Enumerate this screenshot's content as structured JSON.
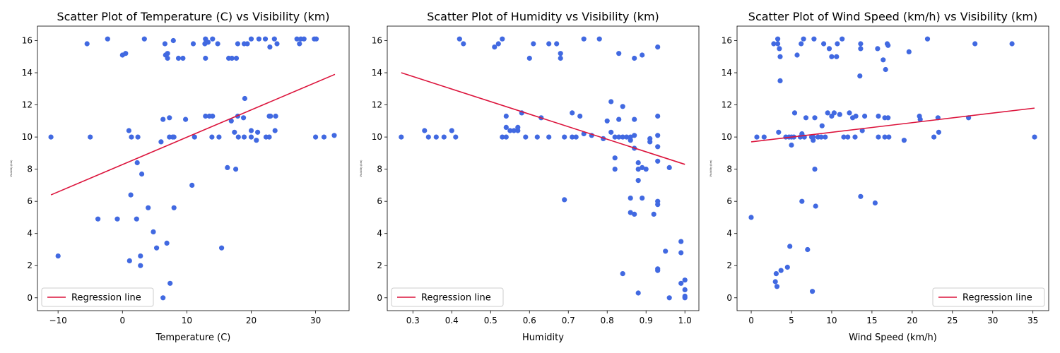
{
  "chart_data": [
    {
      "type": "scatter",
      "title": "Scatter Plot of Temperature (C) vs Visibility (km)",
      "xlabel": "Temperature (C)",
      "ylabel": "Visibility (km)",
      "xlim": [
        -13.2,
        35.2
      ],
      "ylim": [
        -0.8,
        16.9
      ],
      "xticks": [
        -10,
        0,
        10,
        20,
        30
      ],
      "yticks": [
        0,
        2,
        4,
        6,
        8,
        10,
        12,
        14,
        16
      ],
      "grid": false,
      "legend_position": "lower-left",
      "legend": [
        "Regression line"
      ],
      "point_color": "#4169e1",
      "line_color": "#dc143c",
      "regression": {
        "x": [
          -11.1,
          33.0
        ],
        "y": [
          6.4,
          13.9
        ]
      },
      "points": [
        [
          -11.1,
          10.0
        ],
        [
          -10.0,
          2.6
        ],
        [
          -5.5,
          15.8
        ],
        [
          -5.0,
          10.0
        ],
        [
          -3.8,
          4.9
        ],
        [
          -2.3,
          16.1
        ],
        [
          -0.8,
          4.9
        ],
        [
          0.0,
          15.1
        ],
        [
          0.5,
          15.2
        ],
        [
          1.0,
          10.4
        ],
        [
          1.1,
          2.3
        ],
        [
          1.3,
          6.4
        ],
        [
          1.4,
          10.0
        ],
        [
          2.2,
          4.9
        ],
        [
          2.3,
          8.4
        ],
        [
          2.4,
          10.0
        ],
        [
          2.8,
          2.0
        ],
        [
          2.8,
          2.6
        ],
        [
          3.0,
          7.7
        ],
        [
          3.4,
          16.1
        ],
        [
          4.0,
          5.6
        ],
        [
          4.8,
          4.1
        ],
        [
          5.3,
          3.1
        ],
        [
          6.0,
          9.7
        ],
        [
          6.3,
          11.1
        ],
        [
          6.3,
          0.0
        ],
        [
          6.6,
          15.8
        ],
        [
          6.7,
          15.1
        ],
        [
          6.9,
          3.4
        ],
        [
          7.0,
          15.2
        ],
        [
          7.0,
          14.9
        ],
        [
          7.3,
          10.0
        ],
        [
          7.3,
          11.2
        ],
        [
          7.4,
          0.9
        ],
        [
          7.8,
          10.0
        ],
        [
          7.9,
          16.0
        ],
        [
          8.0,
          5.6
        ],
        [
          8.0,
          10.0
        ],
        [
          8.7,
          14.9
        ],
        [
          9.4,
          14.9
        ],
        [
          9.8,
          11.1
        ],
        [
          10.8,
          7.0
        ],
        [
          11.0,
          15.8
        ],
        [
          11.2,
          10.0
        ],
        [
          12.8,
          15.8
        ],
        [
          12.9,
          16.1
        ],
        [
          12.9,
          11.3
        ],
        [
          12.9,
          14.9
        ],
        [
          13.0,
          15.9
        ],
        [
          13.3,
          15.9
        ],
        [
          13.5,
          11.3
        ],
        [
          13.9,
          10.0
        ],
        [
          14.0,
          16.1
        ],
        [
          14.0,
          11.3
        ],
        [
          14.8,
          15.8
        ],
        [
          15.0,
          10.0
        ],
        [
          15.4,
          3.1
        ],
        [
          16.3,
          8.1
        ],
        [
          16.5,
          14.9
        ],
        [
          16.9,
          11.0
        ],
        [
          17.0,
          14.9
        ],
        [
          17.4,
          10.3
        ],
        [
          17.6,
          8.0
        ],
        [
          17.7,
          14.9
        ],
        [
          17.9,
          11.3
        ],
        [
          17.9,
          15.8
        ],
        [
          18.0,
          10.0
        ],
        [
          18.8,
          11.2
        ],
        [
          18.9,
          15.8
        ],
        [
          18.9,
          10.0
        ],
        [
          19.0,
          12.4
        ],
        [
          19.4,
          15.8
        ],
        [
          20.0,
          10.0
        ],
        [
          20.0,
          10.4
        ],
        [
          20.0,
          16.1
        ],
        [
          20.8,
          9.8
        ],
        [
          21.0,
          10.3
        ],
        [
          21.2,
          16.1
        ],
        [
          22.2,
          16.1
        ],
        [
          22.3,
          10.0
        ],
        [
          22.8,
          10.0
        ],
        [
          22.8,
          11.3
        ],
        [
          22.9,
          15.6
        ],
        [
          23.0,
          11.3
        ],
        [
          23.6,
          16.1
        ],
        [
          23.7,
          10.4
        ],
        [
          23.8,
          11.3
        ],
        [
          24.0,
          15.8
        ],
        [
          27.1,
          16.1
        ],
        [
          27.5,
          15.8
        ],
        [
          27.7,
          16.1
        ],
        [
          28.2,
          16.1
        ],
        [
          29.8,
          16.1
        ],
        [
          30.0,
          10.0
        ],
        [
          30.1,
          16.1
        ],
        [
          31.3,
          10.0
        ],
        [
          32.9,
          10.1
        ]
      ]
    },
    {
      "type": "scatter",
      "title": "Scatter Plot of Humidity vs Visibility (km)",
      "xlabel": "Humidity",
      "ylabel": "Visibility (km)",
      "xlim": [
        0.234,
        1.036
      ],
      "ylim": [
        -0.8,
        16.9
      ],
      "xticks": [
        0.3,
        0.4,
        0.5,
        0.6,
        0.7,
        0.8,
        0.9,
        1.0
      ],
      "xtick_labels": [
        "0.3",
        "0.4",
        "0.5",
        "0.6",
        "0.7",
        "0.8",
        "0.9",
        "1.0"
      ],
      "yticks": [
        0,
        2,
        4,
        6,
        8,
        10,
        12,
        14,
        16
      ],
      "grid": false,
      "legend_position": "lower-left",
      "legend": [
        "Regression line"
      ],
      "point_color": "#4169e1",
      "line_color": "#dc143c",
      "regression": {
        "x": [
          0.27,
          1.0
        ],
        "y": [
          14.0,
          8.3
        ]
      },
      "points": [
        [
          0.27,
          10.0
        ],
        [
          0.33,
          10.4
        ],
        [
          0.34,
          10.0
        ],
        [
          0.36,
          10.0
        ],
        [
          0.38,
          10.0
        ],
        [
          0.4,
          10.4
        ],
        [
          0.41,
          10.0
        ],
        [
          0.42,
          16.1
        ],
        [
          0.43,
          15.8
        ],
        [
          0.51,
          15.6
        ],
        [
          0.52,
          15.8
        ],
        [
          0.53,
          16.1
        ],
        [
          0.53,
          10.0
        ],
        [
          0.54,
          10.6
        ],
        [
          0.54,
          11.3
        ],
        [
          0.54,
          10.0
        ],
        [
          0.55,
          10.4
        ],
        [
          0.56,
          10.4
        ],
        [
          0.57,
          10.6
        ],
        [
          0.57,
          10.4
        ],
        [
          0.58,
          11.5
        ],
        [
          0.59,
          10.0
        ],
        [
          0.6,
          14.9
        ],
        [
          0.61,
          15.8
        ],
        [
          0.62,
          10.0
        ],
        [
          0.63,
          11.2
        ],
        [
          0.65,
          15.8
        ],
        [
          0.65,
          10.0
        ],
        [
          0.67,
          15.8
        ],
        [
          0.68,
          15.2
        ],
        [
          0.68,
          14.9
        ],
        [
          0.69,
          6.1
        ],
        [
          0.69,
          10.0
        ],
        [
          0.71,
          11.5
        ],
        [
          0.71,
          10.0
        ],
        [
          0.72,
          10.0
        ],
        [
          0.73,
          11.3
        ],
        [
          0.74,
          16.1
        ],
        [
          0.74,
          10.2
        ],
        [
          0.76,
          10.1
        ],
        [
          0.78,
          16.1
        ],
        [
          0.79,
          9.9
        ],
        [
          0.8,
          11.0
        ],
        [
          0.81,
          12.2
        ],
        [
          0.81,
          10.3
        ],
        [
          0.82,
          8.7
        ],
        [
          0.82,
          8.0
        ],
        [
          0.82,
          10.0
        ],
        [
          0.83,
          11.1
        ],
        [
          0.83,
          15.2
        ],
        [
          0.83,
          10.0
        ],
        [
          0.84,
          11.9
        ],
        [
          0.84,
          10.0
        ],
        [
          0.84,
          1.5
        ],
        [
          0.85,
          10.0
        ],
        [
          0.86,
          6.2
        ],
        [
          0.86,
          5.3
        ],
        [
          0.86,
          10.0
        ],
        [
          0.86,
          9.8
        ],
        [
          0.87,
          10.1
        ],
        [
          0.87,
          14.9
        ],
        [
          0.87,
          11.1
        ],
        [
          0.87,
          9.3
        ],
        [
          0.87,
          5.2
        ],
        [
          0.88,
          8.4
        ],
        [
          0.88,
          7.3
        ],
        [
          0.88,
          8.0
        ],
        [
          0.88,
          0.3
        ],
        [
          0.89,
          15.1
        ],
        [
          0.89,
          6.2
        ],
        [
          0.89,
          8.1
        ],
        [
          0.9,
          8.0
        ],
        [
          0.91,
          9.9
        ],
        [
          0.91,
          9.7
        ],
        [
          0.92,
          5.2
        ],
        [
          0.93,
          15.6
        ],
        [
          0.93,
          11.3
        ],
        [
          0.93,
          10.1
        ],
        [
          0.93,
          9.4
        ],
        [
          0.93,
          8.5
        ],
        [
          0.93,
          6.0
        ],
        [
          0.93,
          5.8
        ],
        [
          0.93,
          1.8
        ],
        [
          0.93,
          1.7
        ],
        [
          0.95,
          2.9
        ],
        [
          0.96,
          8.1
        ],
        [
          0.96,
          0.0
        ],
        [
          0.99,
          3.5
        ],
        [
          0.99,
          2.8
        ],
        [
          0.99,
          0.9
        ],
        [
          1.0,
          1.1
        ],
        [
          1.0,
          0.5
        ],
        [
          1.0,
          0.1
        ],
        [
          1.0,
          0.0
        ]
      ]
    },
    {
      "type": "scatter",
      "title": "Scatter Plot of Wind Speed (km/h) vs Visibility (km)",
      "xlabel": "Wind Speed (km/h)",
      "ylabel": "Visibility (km)",
      "xlim": [
        -1.76,
        36.96
      ],
      "ylim": [
        -0.8,
        16.9
      ],
      "xticks": [
        0,
        5,
        10,
        15,
        20,
        25,
        30,
        35
      ],
      "yticks": [
        0,
        2,
        4,
        6,
        8,
        10,
        12,
        14,
        16
      ],
      "grid": false,
      "legend_position": "lower-right",
      "legend": [
        "Regression line"
      ],
      "point_color": "#4169e1",
      "line_color": "#dc143c",
      "regression": {
        "x": [
          0.0,
          35.2
        ],
        "y": [
          9.7,
          11.8
        ]
      },
      "points": [
        [
          0.0,
          5.0
        ],
        [
          0.7,
          10.0
        ],
        [
          1.6,
          10.0
        ],
        [
          2.8,
          15.8
        ],
        [
          3.0,
          1.0
        ],
        [
          3.1,
          1.5
        ],
        [
          3.2,
          0.7
        ],
        [
          3.3,
          16.1
        ],
        [
          3.3,
          15.8
        ],
        [
          3.4,
          10.3
        ],
        [
          3.5,
          15.5
        ],
        [
          3.6,
          15.0
        ],
        [
          3.6,
          13.5
        ],
        [
          3.7,
          1.7
        ],
        [
          4.3,
          10.0
        ],
        [
          4.5,
          1.9
        ],
        [
          4.7,
          10.0
        ],
        [
          4.8,
          3.2
        ],
        [
          5.0,
          10.0
        ],
        [
          5.0,
          9.5
        ],
        [
          5.3,
          10.0
        ],
        [
          5.4,
          11.5
        ],
        [
          5.7,
          15.1
        ],
        [
          6.1,
          10.0
        ],
        [
          6.2,
          15.8
        ],
        [
          6.3,
          10.2
        ],
        [
          6.3,
          6.0
        ],
        [
          6.5,
          16.1
        ],
        [
          6.6,
          10.0
        ],
        [
          6.8,
          11.2
        ],
        [
          7.0,
          3.0
        ],
        [
          7.5,
          10.0
        ],
        [
          7.6,
          0.4
        ],
        [
          7.7,
          10.0
        ],
        [
          7.7,
          9.8
        ],
        [
          7.8,
          16.1
        ],
        [
          7.9,
          11.2
        ],
        [
          7.9,
          8.0
        ],
        [
          8.0,
          5.7
        ],
        [
          8.3,
          10.0
        ],
        [
          8.7,
          10.0
        ],
        [
          8.8,
          10.7
        ],
        [
          9.0,
          15.8
        ],
        [
          9.2,
          10.0
        ],
        [
          9.5,
          11.5
        ],
        [
          9.7,
          15.5
        ],
        [
          10.0,
          11.3
        ],
        [
          10.0,
          15.0
        ],
        [
          10.3,
          11.5
        ],
        [
          10.6,
          15.0
        ],
        [
          10.7,
          15.8
        ],
        [
          11.0,
          11.4
        ],
        [
          11.3,
          16.1
        ],
        [
          11.5,
          10.0
        ],
        [
          12.0,
          10.0
        ],
        [
          12.2,
          11.5
        ],
        [
          12.6,
          11.2
        ],
        [
          12.9,
          10.0
        ],
        [
          13.0,
          11.3
        ],
        [
          13.5,
          13.8
        ],
        [
          13.6,
          15.5
        ],
        [
          13.6,
          6.3
        ],
        [
          13.6,
          15.8
        ],
        [
          13.8,
          10.4
        ],
        [
          14.1,
          11.3
        ],
        [
          15.4,
          5.9
        ],
        [
          15.7,
          15.5
        ],
        [
          15.8,
          10.0
        ],
        [
          15.8,
          11.3
        ],
        [
          16.4,
          14.8
        ],
        [
          16.6,
          10.0
        ],
        [
          16.6,
          11.2
        ],
        [
          16.7,
          14.2
        ],
        [
          16.9,
          15.8
        ],
        [
          17.0,
          11.2
        ],
        [
          17.0,
          15.7
        ],
        [
          17.1,
          10.0
        ],
        [
          19.0,
          9.8
        ],
        [
          19.6,
          15.3
        ],
        [
          20.9,
          11.3
        ],
        [
          21.0,
          11.1
        ],
        [
          21.9,
          16.1
        ],
        [
          22.7,
          10.0
        ],
        [
          23.2,
          11.2
        ],
        [
          23.3,
          10.3
        ],
        [
          27.0,
          11.2
        ],
        [
          27.8,
          15.8
        ],
        [
          32.4,
          15.8
        ],
        [
          35.2,
          10.0
        ]
      ]
    }
  ]
}
